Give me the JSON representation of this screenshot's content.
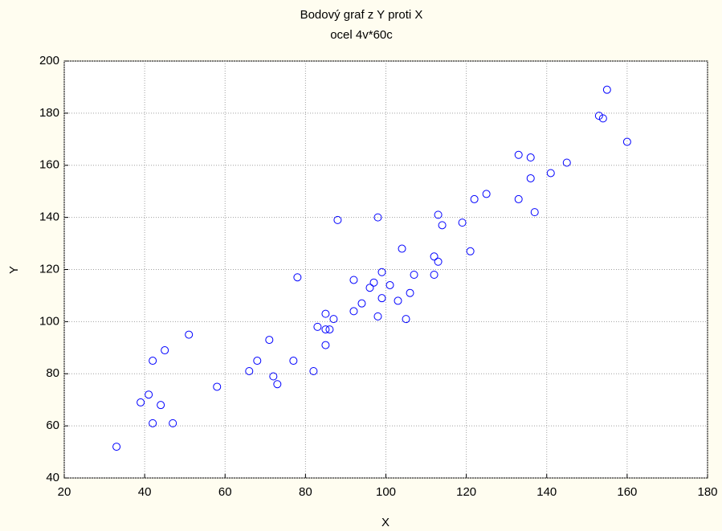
{
  "chart_data": {
    "type": "scatter",
    "title": "Bodový graf z Y proti X",
    "subtitle": "ocel 4v*60c",
    "x_label": "X",
    "y_label": "Y",
    "color": "#0000ff",
    "grid": true,
    "xlim": [
      20,
      180
    ],
    "xticks": [
      20,
      40,
      60,
      80,
      100,
      120,
      140,
      160,
      180
    ],
    "ylim": [
      40,
      200
    ],
    "yticks": [
      40,
      60,
      80,
      100,
      120,
      140,
      160,
      180,
      200
    ],
    "x": [
      33,
      39,
      41,
      42,
      42,
      44,
      45,
      47,
      51,
      58,
      66,
      68,
      71,
      72,
      73,
      77,
      78,
      82,
      83,
      85,
      85,
      85,
      86,
      87,
      88,
      92,
      92,
      94,
      96,
      97,
      98,
      98,
      99,
      99,
      101,
      103,
      104,
      105,
      106,
      107,
      112,
      112,
      113,
      113,
      114,
      119,
      121,
      122,
      125,
      133,
      133,
      136,
      136,
      137,
      141,
      145,
      153,
      154,
      155,
      160
    ],
    "values": [
      52,
      69,
      72,
      85,
      61,
      68,
      89,
      61,
      95,
      75,
      81,
      85,
      93,
      79,
      76,
      85,
      117,
      81,
      98,
      103,
      91,
      97,
      97,
      101,
      139,
      116,
      104,
      107,
      113,
      115,
      140,
      102,
      119,
      109,
      114,
      108,
      128,
      101,
      111,
      118,
      125,
      118,
      123,
      141,
      137,
      138,
      127,
      147,
      149,
      147,
      164,
      163,
      155,
      142,
      157,
      161,
      179,
      178,
      189,
      169
    ]
  }
}
